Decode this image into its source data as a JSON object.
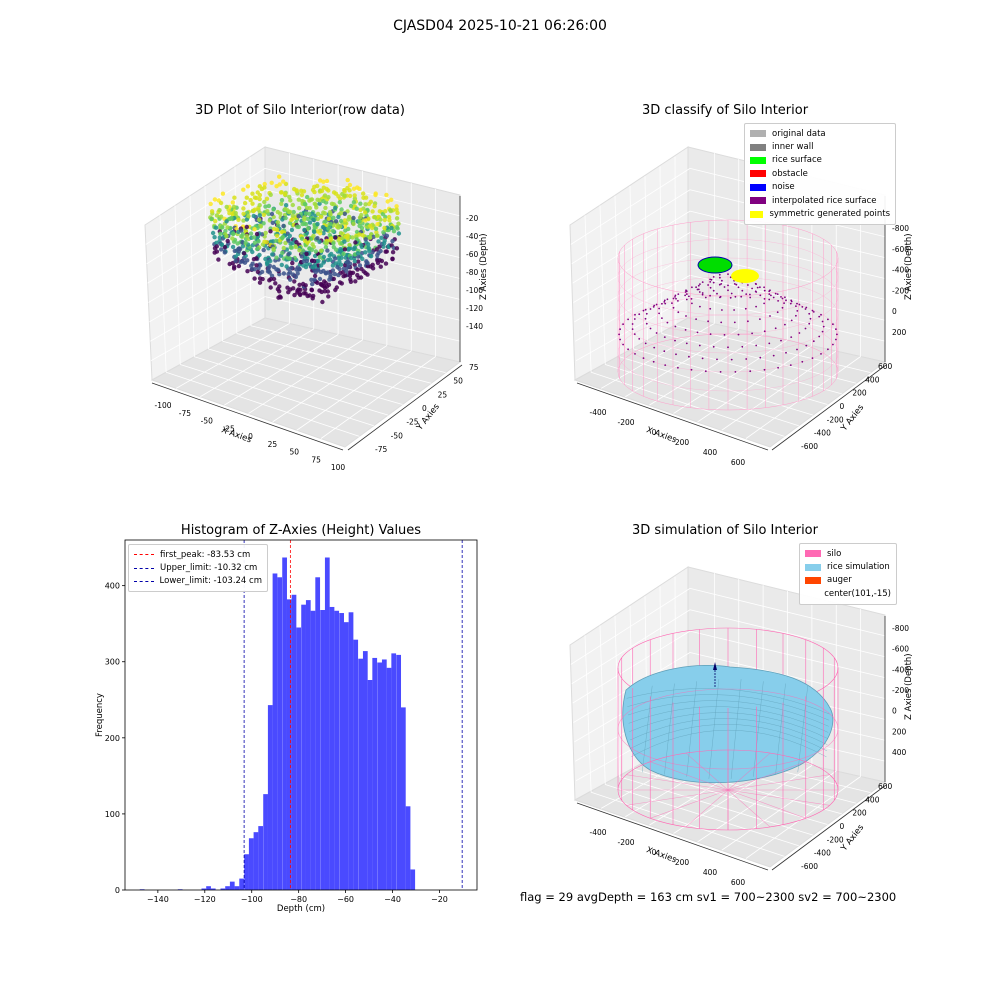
{
  "suptitle": "CJASD04 2025-10-21 06:26:00",
  "bottom_text": "flag = 29  avgDepth = 163 cm  sv1 = 700~2300  sv2 = 700~2300",
  "chart_data": [
    {
      "type": "scatter",
      "title": "3D Plot of Silo Interior(row data)",
      "xlabel": "X Axies",
      "ylabel": "Y Axies",
      "zlabel": "Z Axies (Depth)",
      "xticks": [
        "-100",
        "-75",
        "-50",
        "-25",
        "0",
        "25",
        "50",
        "75",
        "100"
      ],
      "yticks": [
        "-75",
        "-50",
        "-25",
        "0",
        "25",
        "50",
        "75"
      ],
      "zticks": [
        "-140",
        "-120",
        "-100",
        "-80",
        "-60",
        "-40",
        "-20"
      ],
      "xlim": [
        -110,
        100
      ],
      "ylim": [
        -85,
        85
      ],
      "zlim": [
        -150,
        -10
      ],
      "colormap": "viridis"
    },
    {
      "type": "scatter",
      "title": "3D classify of Silo Interior",
      "xlabel": "X Axies",
      "ylabel": "Y Axies",
      "zlabel": "Z Axies (Depth)",
      "xticks": [
        "-400",
        "-200",
        "0",
        "200",
        "400",
        "600"
      ],
      "yticks": [
        "-600",
        "-400",
        "-200",
        "0",
        "200",
        "400",
        "600"
      ],
      "zticks": [
        "-800",
        "-600",
        "-400",
        "-200",
        "0",
        "200"
      ],
      "legend": [
        {
          "label": "original data",
          "color": "#b0b0b0"
        },
        {
          "label": "inner wall",
          "color": "#808080"
        },
        {
          "label": "rice surface",
          "color": "#00ff00"
        },
        {
          "label": "obstacle",
          "color": "#ff0000"
        },
        {
          "label": "noise",
          "color": "#0000ff"
        },
        {
          "label": "interpolated rice surface",
          "color": "#800080"
        },
        {
          "label": "symmetric generated points",
          "color": "#ffff00"
        }
      ]
    },
    {
      "type": "bar",
      "title": "Histogram of Z-Axies (Height) Values",
      "xlabel": "Depth (cm)",
      "ylabel": "Frequency",
      "xlim": [
        -154,
        -4
      ],
      "ylim": [
        0,
        460
      ],
      "xticks": [
        -140,
        -120,
        -100,
        -80,
        -60,
        -40,
        -20
      ],
      "yticks": [
        0,
        100,
        200,
        300,
        400
      ],
      "bar_color": "#4a4aff",
      "bin_width": 2.02,
      "bin_starts": [
        -147.7,
        -131.5,
        -121.4,
        -119.4,
        -117.4,
        -113.3,
        -111.3,
        -109.3,
        -107.3,
        -105.3,
        -103.2,
        -101.2,
        -99.2,
        -97.2,
        -95.1,
        -93.1,
        -91.1,
        -89.1,
        -87.0,
        -85.0,
        -83.0,
        -81.0,
        -78.9,
        -76.9,
        -74.9,
        -72.9,
        -70.8,
        -68.8,
        -66.8,
        -64.8,
        -62.7,
        -60.7,
        -58.7,
        -56.7,
        -54.6,
        -52.6,
        -50.6,
        -48.6,
        -46.5,
        -44.5,
        -42.5,
        -40.5,
        -38.4,
        -36.4,
        -34.4,
        -32.4,
        -30.3,
        -28.3,
        -26.3,
        -24.3,
        -22.2,
        -20.2,
        -18.2,
        -16.2,
        -14.1,
        -12.1,
        -10.1
      ],
      "values": [
        1,
        1,
        2,
        5,
        2,
        2,
        5,
        11,
        5,
        15,
        47,
        68,
        76,
        84,
        126,
        243,
        416,
        411,
        437,
        382,
        388,
        345,
        375,
        381,
        367,
        411,
        368,
        437,
        372,
        367,
        364,
        352,
        365,
        329,
        304,
        314,
        276,
        305,
        299,
        303,
        292,
        311,
        309,
        240,
        110,
        27,
        0,
        0,
        0,
        0,
        0,
        0,
        0,
        0,
        0,
        0,
        0
      ],
      "reference_lines": [
        {
          "label": "first_peak: -83.53 cm",
          "x": -83.53,
          "color": "#ff0000"
        },
        {
          "label": "Upper_limit: -10.32 cm",
          "x": -10.32,
          "color": "#0000aa"
        },
        {
          "label": "Lower_limit: -103.24 cm",
          "x": -103.24,
          "color": "#0000aa"
        }
      ]
    },
    {
      "type": "area",
      "title": "3D simulation of Silo Interior",
      "xlabel": "X Axies",
      "ylabel": "Y Axies",
      "zlabel": "Z Axies (Depth)",
      "xticks": [
        "-400",
        "-200",
        "0",
        "200",
        "400",
        "600"
      ],
      "yticks": [
        "-600",
        "-400",
        "-200",
        "0",
        "200",
        "400",
        "600"
      ],
      "zticks": [
        "-800",
        "-600",
        "-400",
        "-200",
        "0",
        "200",
        "400"
      ],
      "legend": [
        {
          "label": "silo",
          "color": "#ff69b4"
        },
        {
          "label": "rice simulation",
          "color": "#87ceeb"
        },
        {
          "label": "auger",
          "color": "#ff4500"
        },
        {
          "label": "center(101,-15)",
          "color": ""
        }
      ]
    }
  ]
}
